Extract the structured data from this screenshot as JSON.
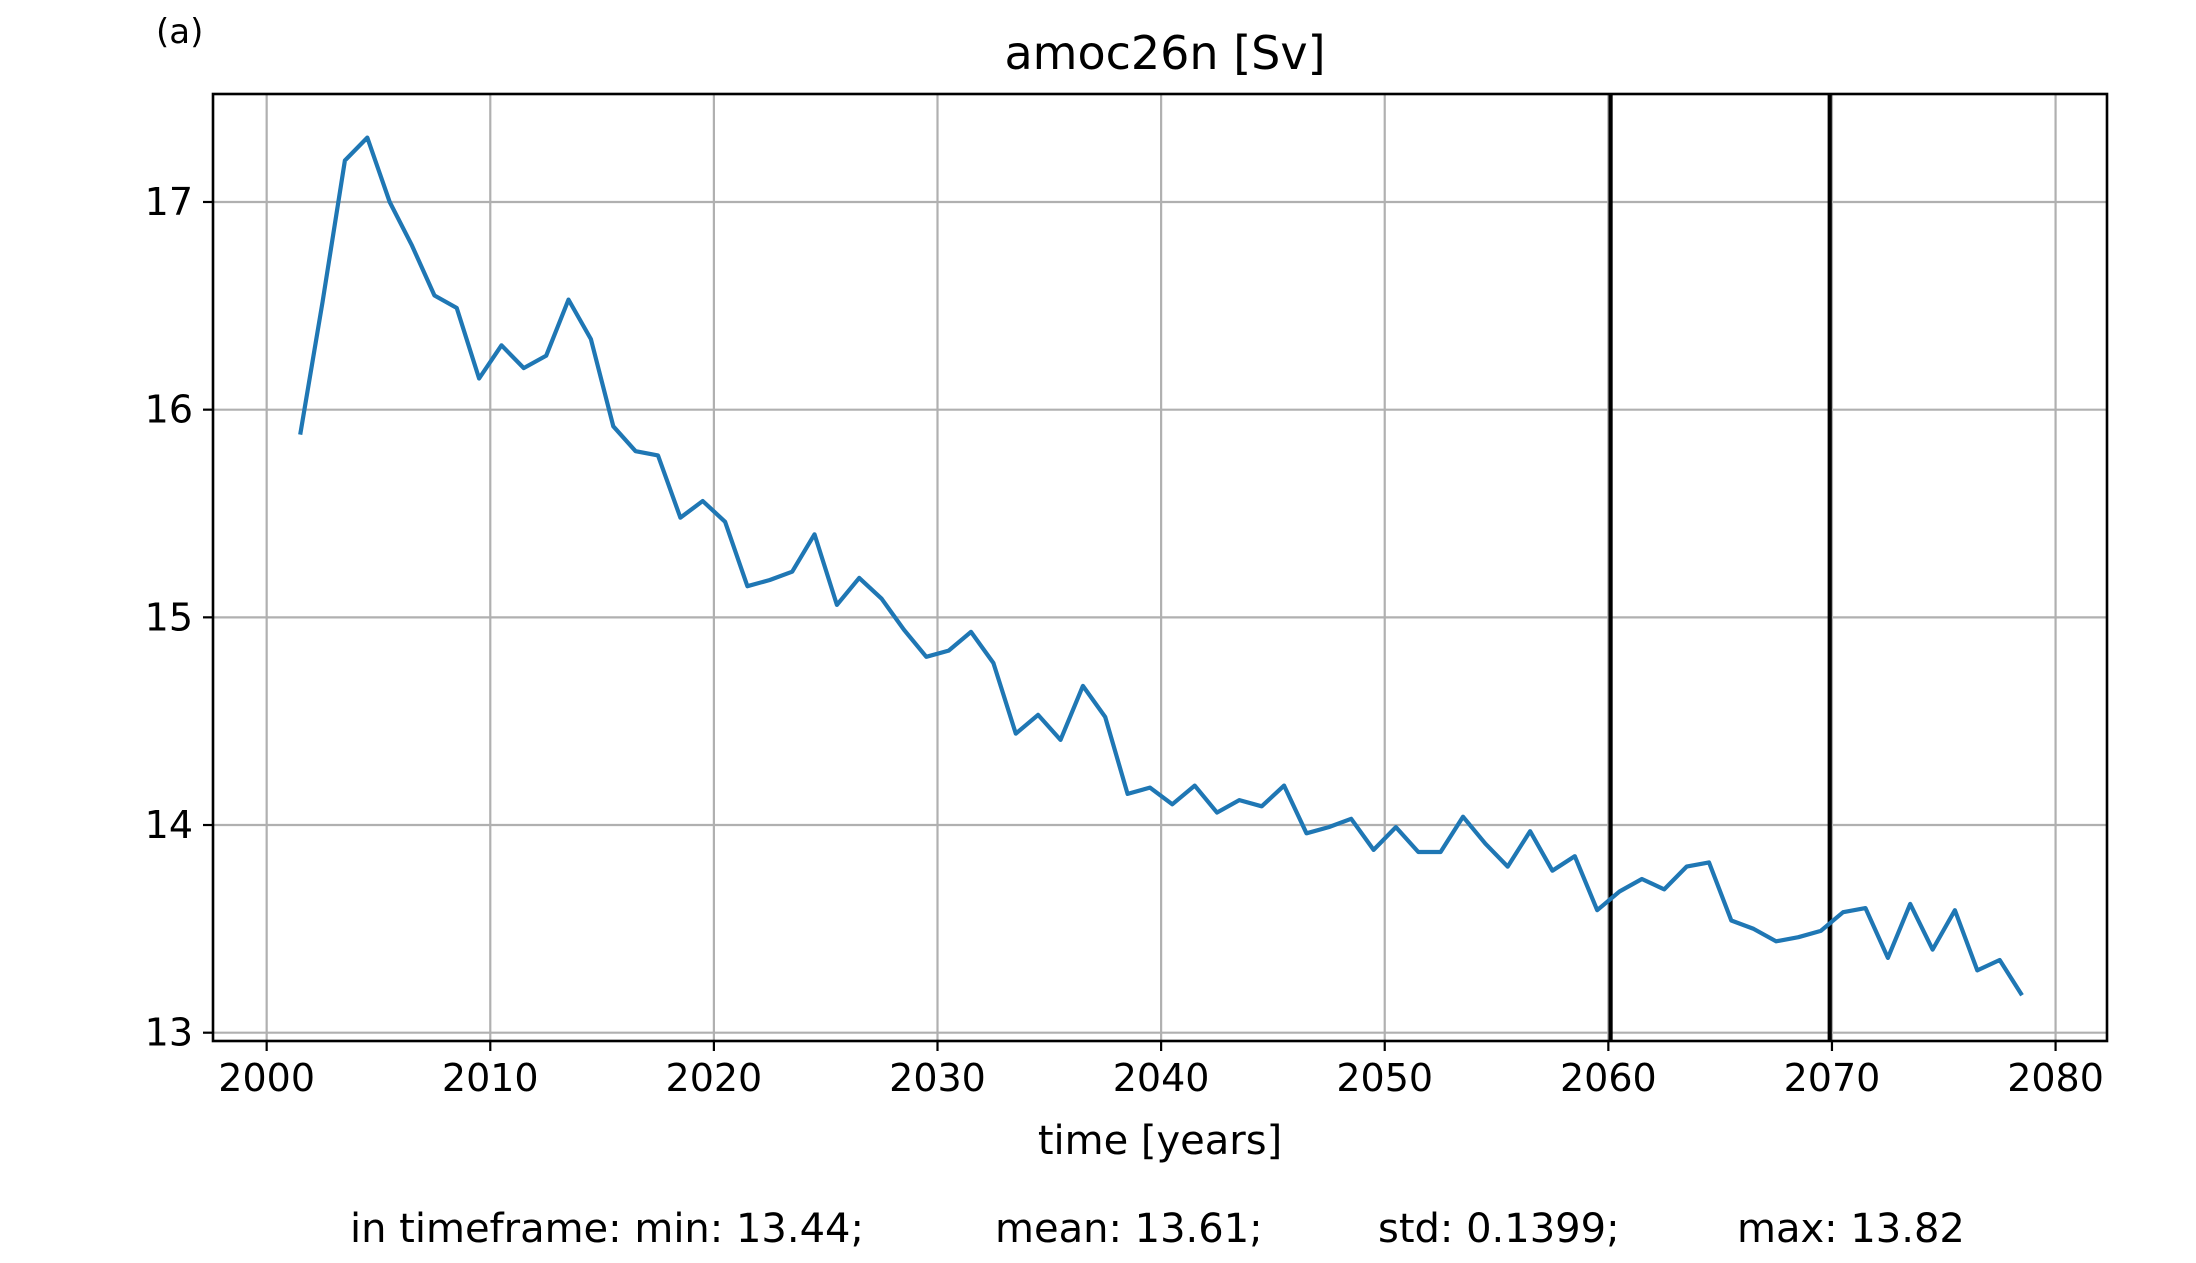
{
  "panel_label": "(a)",
  "chart_data": {
    "type": "line",
    "title": "amoc26n [Sv]",
    "xlabel": "time [years]",
    "ylabel": "",
    "xlim": [
      1997.6,
      2082.3
    ],
    "ylim": [
      12.96,
      17.52
    ],
    "xticks": [
      2000,
      2010,
      2020,
      2030,
      2040,
      2050,
      2060,
      2070,
      2080
    ],
    "yticks": [
      13,
      14,
      15,
      16,
      17
    ],
    "grid": true,
    "line_color": "#1f77b4",
    "vlines": [
      2060.1,
      2069.9
    ],
    "vline_color": "#000000",
    "series": [
      {
        "x": [
          2001.5,
          2002.5,
          2003.5,
          2004.5,
          2005.5,
          2006.5,
          2007.5,
          2008.5,
          2009.5,
          2010.5,
          2011.5,
          2012.5,
          2013.5,
          2014.5,
          2015.5,
          2016.5,
          2017.5,
          2018.5,
          2019.5,
          2020.5,
          2021.5,
          2022.5,
          2023.5,
          2024.5,
          2025.5,
          2026.5,
          2027.5,
          2028.5,
          2029.5,
          2030.5,
          2031.5,
          2032.5,
          2033.5,
          2034.5,
          2035.5,
          2036.5,
          2037.5,
          2038.5,
          2039.5,
          2040.5,
          2041.5,
          2042.5,
          2043.5,
          2044.5,
          2045.5,
          2046.5,
          2047.5,
          2048.5,
          2049.5,
          2050.5,
          2051.5,
          2052.5,
          2053.5,
          2054.5,
          2055.5,
          2056.5,
          2057.5,
          2058.5,
          2059.5,
          2060.5,
          2061.5,
          2062.5,
          2063.5,
          2064.5,
          2065.5,
          2066.5,
          2067.5,
          2068.5,
          2069.5,
          2070.5,
          2071.5,
          2072.5,
          2073.5,
          2074.5,
          2075.5,
          2076.5,
          2077.5,
          2078.5
        ],
        "values": [
          15.88,
          16.52,
          17.2,
          17.31,
          17.0,
          16.79,
          16.55,
          16.49,
          16.15,
          16.31,
          16.2,
          16.26,
          16.53,
          16.34,
          15.92,
          15.8,
          15.78,
          15.48,
          15.56,
          15.46,
          15.15,
          15.18,
          15.22,
          15.4,
          15.06,
          15.19,
          15.09,
          14.94,
          14.81,
          14.84,
          14.93,
          14.78,
          14.44,
          14.53,
          14.41,
          14.67,
          14.52,
          14.15,
          14.18,
          14.1,
          14.19,
          14.06,
          14.12,
          14.09,
          14.19,
          13.96,
          13.99,
          14.03,
          13.88,
          13.99,
          13.87,
          13.87,
          14.04,
          13.91,
          13.8,
          13.97,
          13.78,
          13.85,
          13.59,
          13.68,
          13.74,
          13.69,
          13.8,
          13.82,
          13.54,
          13.5,
          13.44,
          13.46,
          13.49,
          13.58,
          13.6,
          13.36,
          13.62,
          13.4,
          13.59,
          13.3,
          13.35,
          13.18
        ]
      }
    ]
  },
  "stats": {
    "min": "in timeframe: min: 13.44;",
    "mean": "mean: 13.61;",
    "std": "std: 0.1399;",
    "max": "max: 13.82"
  }
}
